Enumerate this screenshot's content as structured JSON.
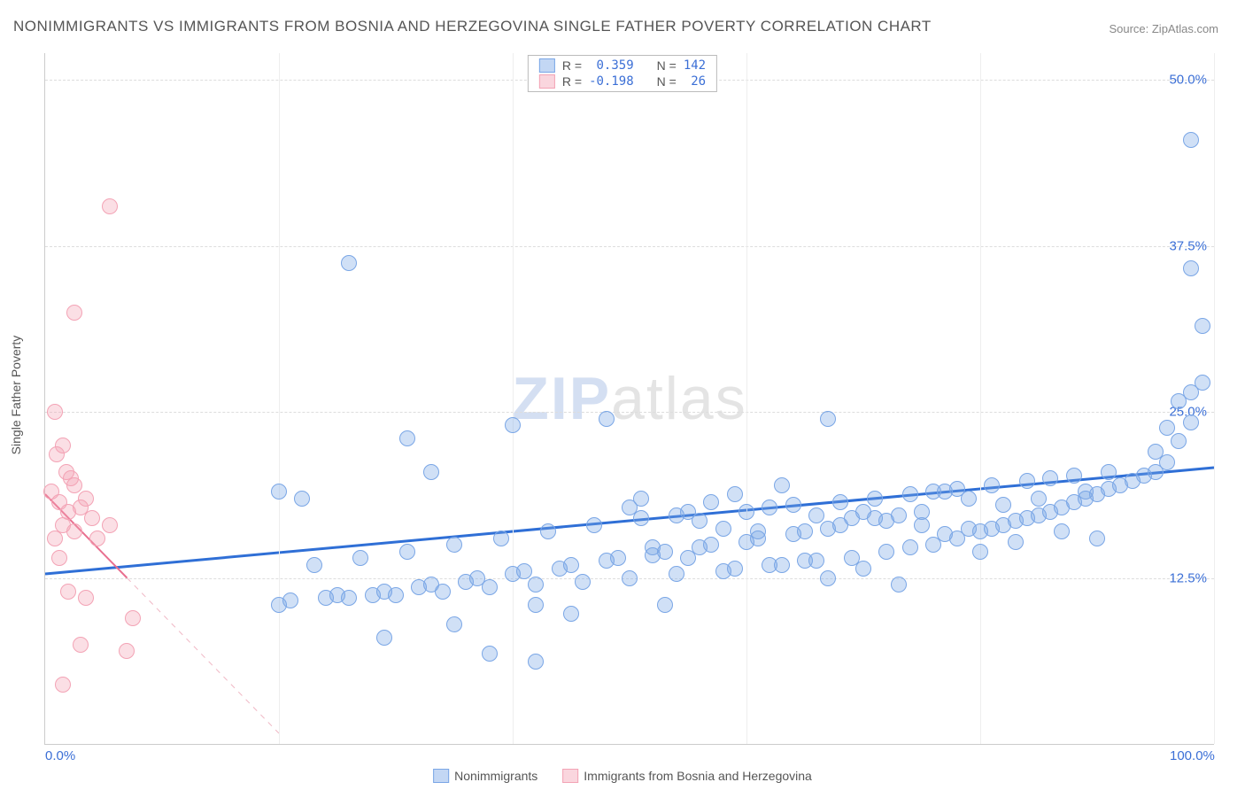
{
  "title": "NONIMMIGRANTS VS IMMIGRANTS FROM BOSNIA AND HERZEGOVINA SINGLE FATHER POVERTY CORRELATION CHART",
  "source": "Source: ZipAtlas.com",
  "ylabel": "Single Father Poverty",
  "watermark_a": "ZIP",
  "watermark_b": "atlas",
  "chart": {
    "type": "scatter",
    "xlim": [
      0,
      100
    ],
    "ylim": [
      0,
      52
    ],
    "xticks": [
      {
        "v": 0,
        "label": "0.0%"
      },
      {
        "v": 100,
        "label": "100.0%"
      }
    ],
    "yticks": [
      {
        "v": 12.5,
        "label": "12.5%"
      },
      {
        "v": 25.0,
        "label": "25.0%"
      },
      {
        "v": 37.5,
        "label": "37.5%"
      },
      {
        "v": 50.0,
        "label": "50.0%"
      }
    ],
    "xgrid": [
      20,
      40,
      60,
      80,
      100
    ],
    "background_color": "#ffffff",
    "grid_color": "#dddddd",
    "marker_radius": 9,
    "series": [
      {
        "name": "Nonimmigrants",
        "color_fill": "rgba(121,166,230,0.35)",
        "color_stroke": "#7aa6e6",
        "r": 0.359,
        "n": 142,
        "trend": {
          "x1": 0,
          "y1": 12.8,
          "x2": 100,
          "y2": 20.8,
          "color": "#2f6fd6",
          "width": 3,
          "dash": false
        },
        "points": [
          [
            26,
            36.2
          ],
          [
            98,
            45.5
          ],
          [
            98,
            35.8
          ],
          [
            99,
            31.5
          ],
          [
            99,
            27.2
          ],
          [
            98,
            26.5
          ],
          [
            97,
            25.8
          ],
          [
            98,
            24.2
          ],
          [
            96,
            23.8
          ],
          [
            97,
            22.8
          ],
          [
            95,
            22.0
          ],
          [
            96,
            21.2
          ],
          [
            95,
            20.5
          ],
          [
            94,
            20.2
          ],
          [
            93,
            19.8
          ],
          [
            92,
            19.5
          ],
          [
            91,
            19.2
          ],
          [
            90,
            18.8
          ],
          [
            89,
            18.5
          ],
          [
            88,
            18.2
          ],
          [
            87,
            17.8
          ],
          [
            86,
            17.5
          ],
          [
            85,
            17.2
          ],
          [
            84,
            17.0
          ],
          [
            83,
            16.8
          ],
          [
            82,
            16.5
          ],
          [
            81,
            16.2
          ],
          [
            80,
            16.0
          ],
          [
            79,
            18.5
          ],
          [
            78,
            15.5
          ],
          [
            77,
            19.0
          ],
          [
            76,
            15.0
          ],
          [
            75,
            17.5
          ],
          [
            74,
            14.8
          ],
          [
            73,
            17.2
          ],
          [
            72,
            14.5
          ],
          [
            71,
            17.0
          ],
          [
            70,
            17.5
          ],
          [
            69,
            14.0
          ],
          [
            68,
            16.5
          ],
          [
            67,
            16.2
          ],
          [
            66,
            13.8
          ],
          [
            65,
            16.0
          ],
          [
            64,
            15.8
          ],
          [
            63,
            19.5
          ],
          [
            62,
            13.5
          ],
          [
            61,
            15.5
          ],
          [
            60,
            15.2
          ],
          [
            59,
            18.8
          ],
          [
            58,
            13.0
          ],
          [
            57,
            15.0
          ],
          [
            56,
            14.8
          ],
          [
            55,
            17.5
          ],
          [
            54,
            12.8
          ],
          [
            53,
            14.5
          ],
          [
            52,
            14.2
          ],
          [
            67,
            24.5
          ],
          [
            51,
            17.0
          ],
          [
            50,
            12.5
          ],
          [
            49,
            14.0
          ],
          [
            48,
            13.8
          ],
          [
            48,
            24.5
          ],
          [
            47,
            16.5
          ],
          [
            46,
            12.2
          ],
          [
            45,
            13.5
          ],
          [
            44,
            13.2
          ],
          [
            43,
            16.0
          ],
          [
            42,
            12.0
          ],
          [
            41,
            13.0
          ],
          [
            40,
            24.0
          ],
          [
            40,
            12.8
          ],
          [
            39,
            15.5
          ],
          [
            38,
            11.8
          ],
          [
            37,
            12.5
          ],
          [
            36,
            12.2
          ],
          [
            35,
            15.0
          ],
          [
            34,
            11.5
          ],
          [
            33,
            20.5
          ],
          [
            33,
            12.0
          ],
          [
            32,
            11.8
          ],
          [
            31,
            14.5
          ],
          [
            31,
            23.0
          ],
          [
            30,
            11.2
          ],
          [
            29,
            8.0
          ],
          [
            29,
            11.5
          ],
          [
            28,
            11.2
          ],
          [
            27,
            14.0
          ],
          [
            26,
            11.0
          ],
          [
            25,
            11.2
          ],
          [
            24,
            11.0
          ],
          [
            23,
            13.5
          ],
          [
            22,
            18.5
          ],
          [
            21,
            10.8
          ],
          [
            20,
            19.0
          ],
          [
            20,
            10.5
          ],
          [
            35,
            9.0
          ],
          [
            38,
            6.8
          ],
          [
            42,
            10.5
          ],
          [
            42,
            6.2
          ],
          [
            45,
            9.8
          ],
          [
            50,
            17.8
          ],
          [
            51,
            18.5
          ],
          [
            52,
            14.8
          ],
          [
            53,
            10.5
          ],
          [
            54,
            17.2
          ],
          [
            55,
            14.0
          ],
          [
            56,
            16.8
          ],
          [
            57,
            18.2
          ],
          [
            58,
            16.2
          ],
          [
            59,
            13.2
          ],
          [
            60,
            17.5
          ],
          [
            61,
            16.0
          ],
          [
            62,
            17.8
          ],
          [
            63,
            13.5
          ],
          [
            64,
            18.0
          ],
          [
            65,
            13.8
          ],
          [
            66,
            17.2
          ],
          [
            67,
            12.5
          ],
          [
            68,
            18.2
          ],
          [
            69,
            17.0
          ],
          [
            70,
            13.2
          ],
          [
            71,
            18.5
          ],
          [
            72,
            16.8
          ],
          [
            73,
            12.0
          ],
          [
            74,
            18.8
          ],
          [
            75,
            16.5
          ],
          [
            76,
            19.0
          ],
          [
            77,
            15.8
          ],
          [
            78,
            19.2
          ],
          [
            79,
            16.2
          ],
          [
            80,
            14.5
          ],
          [
            81,
            19.5
          ],
          [
            82,
            18.0
          ],
          [
            83,
            15.2
          ],
          [
            84,
            19.8
          ],
          [
            85,
            18.5
          ],
          [
            86,
            20.0
          ],
          [
            87,
            16.0
          ],
          [
            88,
            20.2
          ],
          [
            89,
            19.0
          ],
          [
            90,
            15.5
          ],
          [
            91,
            20.5
          ]
        ]
      },
      {
        "name": "Immigrants from Bosnia and Herzegovina",
        "color_fill": "rgba(243,163,181,0.35)",
        "color_stroke": "#f3a3b5",
        "r": -0.198,
        "n": 26,
        "trend": {
          "x1": 0,
          "y1": 18.8,
          "x2": 7,
          "y2": 12.5,
          "color": "#e86f8f",
          "width": 2,
          "dash": false
        },
        "trend_ext": {
          "x1": 7,
          "y1": 12.5,
          "x2": 20,
          "y2": 0.8,
          "color": "#f0b8c5",
          "width": 1,
          "dash": true
        },
        "points": [
          [
            5.5,
            40.5
          ],
          [
            2.5,
            32.5
          ],
          [
            0.8,
            25.0
          ],
          [
            1.5,
            22.5
          ],
          [
            1.0,
            21.8
          ],
          [
            1.8,
            20.5
          ],
          [
            2.2,
            20.0
          ],
          [
            0.5,
            19.0
          ],
          [
            1.2,
            18.2
          ],
          [
            2.5,
            19.5
          ],
          [
            2.0,
            17.5
          ],
          [
            3.0,
            17.8
          ],
          [
            1.5,
            16.5
          ],
          [
            3.5,
            18.5
          ],
          [
            0.8,
            15.5
          ],
          [
            4.0,
            17.0
          ],
          [
            4.5,
            15.5
          ],
          [
            1.2,
            14.0
          ],
          [
            2.5,
            16.0
          ],
          [
            5.5,
            16.5
          ],
          [
            2.0,
            11.5
          ],
          [
            3.5,
            11.0
          ],
          [
            7.5,
            9.5
          ],
          [
            3.0,
            7.5
          ],
          [
            7.0,
            7.0
          ],
          [
            1.5,
            4.5
          ]
        ]
      }
    ]
  },
  "legend_top": {
    "rows": [
      {
        "swatch_fill": "rgba(121,166,230,0.45)",
        "swatch_stroke": "#7aa6e6",
        "r_label": "R =",
        "r_val": " 0.359",
        "n_label": "N =",
        "n_val": "142"
      },
      {
        "swatch_fill": "rgba(243,163,181,0.45)",
        "swatch_stroke": "#f3a3b5",
        "r_label": "R =",
        "r_val": "-0.198",
        "n_label": "N =",
        "n_val": " 26"
      }
    ]
  },
  "legend_bottom": [
    {
      "swatch_fill": "rgba(121,166,230,0.45)",
      "swatch_stroke": "#7aa6e6",
      "label": "Nonimmigrants"
    },
    {
      "swatch_fill": "rgba(243,163,181,0.45)",
      "swatch_stroke": "#f3a3b5",
      "label": "Immigrants from Bosnia and Herzegovina"
    }
  ]
}
